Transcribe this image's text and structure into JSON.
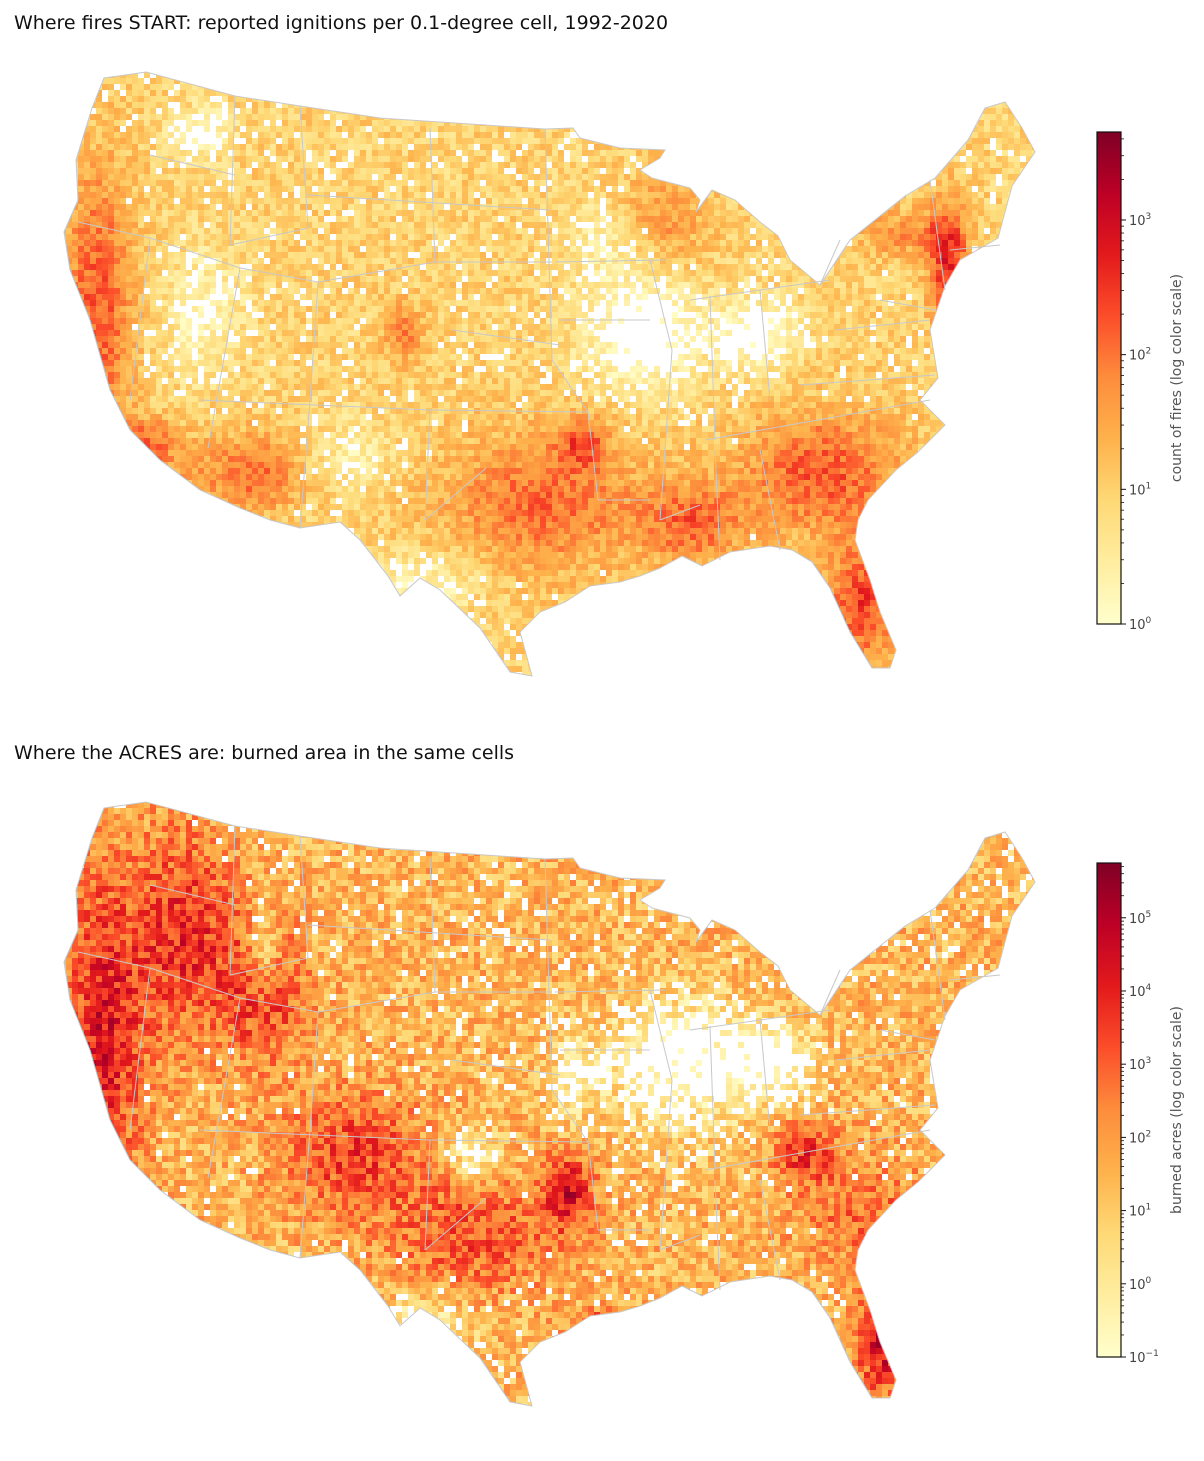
{
  "panels": [
    {
      "title": "Where fires START: reported ignitions per 0.1-degree cell, 1992-2020",
      "colorbar": {
        "label": "count of fires (log color scale)",
        "scale": "log",
        "range": [
          1,
          4500
        ],
        "ticks": [
          {
            "base": "10",
            "exp": "0",
            "value": 1
          },
          {
            "base": "10",
            "exp": "1",
            "value": 10
          },
          {
            "base": "10",
            "exp": "2",
            "value": 100
          },
          {
            "base": "10",
            "exp": "3",
            "value": 1000
          }
        ]
      },
      "colormap": "YlOrRd"
    },
    {
      "title": "Where the ACRES are: burned area in the same cells",
      "colorbar": {
        "label": "burned acres (log color scale)",
        "scale": "log",
        "range": [
          0.1,
          560000
        ],
        "ticks": [
          {
            "base": "10",
            "exp": "−1",
            "value": 0.1
          },
          {
            "base": "10",
            "exp": "0",
            "value": 1
          },
          {
            "base": "10",
            "exp": "1",
            "value": 10
          },
          {
            "base": "10",
            "exp": "2",
            "value": 100
          },
          {
            "base": "10",
            "exp": "3",
            "value": 1000
          },
          {
            "base": "10",
            "exp": "4",
            "value": 10000
          },
          {
            "base": "10",
            "exp": "5",
            "value": 100000
          }
        ]
      },
      "colormap": "YlOrRd"
    }
  ],
  "colors": {
    "colormap_stops": [
      "#ffffcc",
      "#ffeda0",
      "#fed976",
      "#feb24c",
      "#fd8d3c",
      "#fc4e2a",
      "#e31a1c",
      "#bd0026",
      "#800026"
    ],
    "state_borders": "#c8c8c8"
  }
}
